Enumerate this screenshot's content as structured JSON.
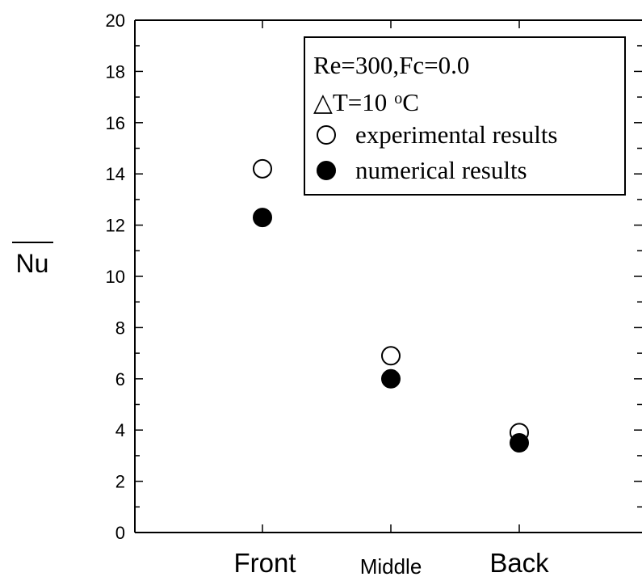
{
  "chart_data": {
    "type": "scatter",
    "categories": [
      "Front",
      "Middle",
      "Back"
    ],
    "series": [
      {
        "name": "experimental results",
        "marker": "open-circle",
        "values": [
          14.2,
          6.9,
          3.9
        ]
      },
      {
        "name": "numerical results",
        "marker": "filled-circle",
        "values": [
          12.3,
          6.0,
          3.5
        ]
      }
    ],
    "ylabel": "Nu",
    "ylabel_overline": true,
    "ylim": [
      0,
      20
    ],
    "y_ticks": [
      "0",
      "2",
      "4",
      "6",
      "8",
      "10",
      "12",
      "14",
      "16",
      "18",
      "20"
    ],
    "legend": {
      "position": "top-right",
      "line1": "Re=300,Fc=0.0",
      "line2_symbol": "△",
      "line2_text": "T=10",
      "line2_degree": "o",
      "line2_unit": "C"
    },
    "grid": false,
    "colors": {
      "marker": "#000000",
      "axis": "#000000",
      "background": "#ffffff"
    }
  }
}
